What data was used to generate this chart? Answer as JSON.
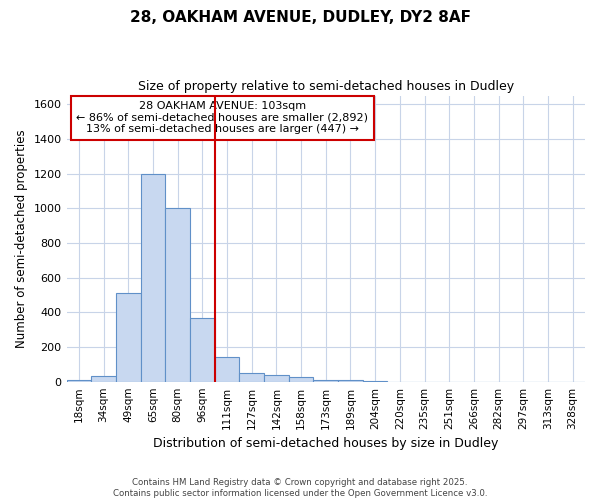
{
  "title1": "28, OAKHAM AVENUE, DUDLEY, DY2 8AF",
  "title2": "Size of property relative to semi-detached houses in Dudley",
  "xlabel": "Distribution of semi-detached houses by size in Dudley",
  "ylabel": "Number of semi-detached properties",
  "bin_labels": [
    "18sqm",
    "34sqm",
    "49sqm",
    "65sqm",
    "80sqm",
    "96sqm",
    "111sqm",
    "127sqm",
    "142sqm",
    "158sqm",
    "173sqm",
    "189sqm",
    "204sqm",
    "220sqm",
    "235sqm",
    "251sqm",
    "266sqm",
    "282sqm",
    "297sqm",
    "313sqm",
    "328sqm"
  ],
  "bin_values": [
    10,
    30,
    510,
    1200,
    1000,
    370,
    140,
    50,
    40,
    25,
    10,
    10,
    5,
    0,
    0,
    0,
    0,
    0,
    0,
    0,
    0
  ],
  "bar_color": "#c8d8f0",
  "bar_edge_color": "#6090c8",
  "red_line_x": 5.5,
  "annotation_title": "28 OAKHAM AVENUE: 103sqm",
  "annotation_line1": "← 86% of semi-detached houses are smaller (2,892)",
  "annotation_line2": "13% of semi-detached houses are larger (447) →",
  "annotation_box_color": "#ffffff",
  "annotation_box_edge_color": "#cc0000",
  "vline_color": "#cc0000",
  "ylim": [
    0,
    1650
  ],
  "yticks": [
    0,
    200,
    400,
    600,
    800,
    1000,
    1200,
    1400,
    1600
  ],
  "footer1": "Contains HM Land Registry data © Crown copyright and database right 2025.",
  "footer2": "Contains public sector information licensed under the Open Government Licence v3.0.",
  "background_color": "#ffffff",
  "grid_color": "#c8d4e8"
}
